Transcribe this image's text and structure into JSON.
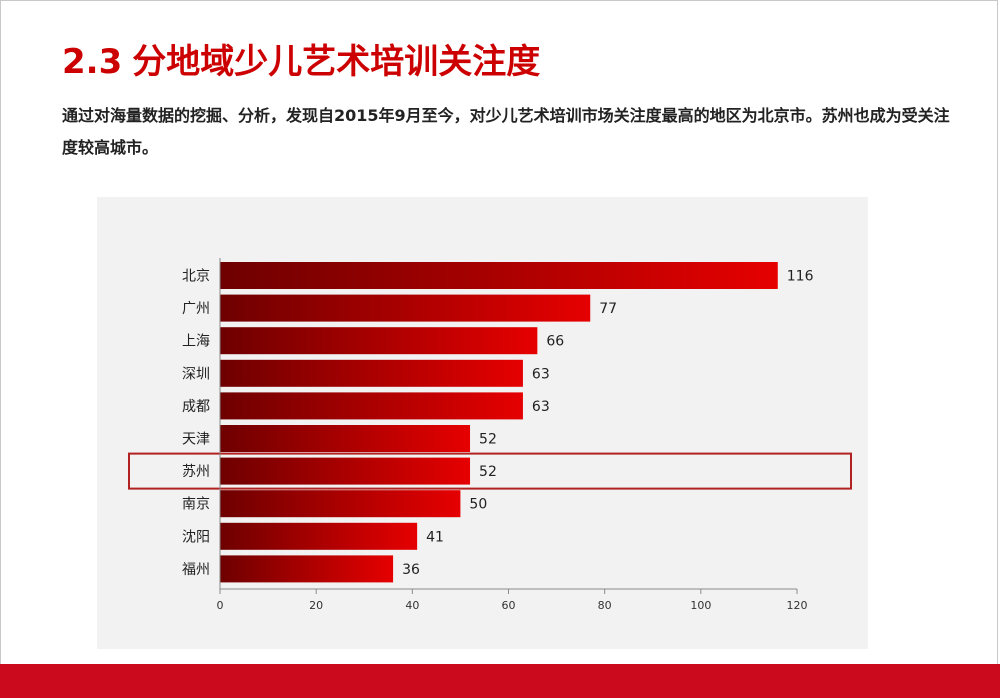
{
  "page": {
    "title_num": "2.3",
    "title_text": "分地域少儿艺术培训关注度",
    "intro": "通过对海量数据的挖掘、分析，发现自2015年9月至今，对少儿艺术培训市场关注度最高的地区为北京市。苏州也成为受关注度较高城市。"
  },
  "colors": {
    "accent": "#cc0000",
    "bar_dark": "#6e0000",
    "bar_light": "#e60000",
    "highlight_border": "#b22222",
    "panel_bg": "#f2f2f2"
  },
  "chart_data": {
    "type": "bar",
    "orientation": "horizontal",
    "categories": [
      "北京",
      "广州",
      "上海",
      "深圳",
      "成都",
      "天津",
      "苏州",
      "南京",
      "沈阳",
      "福州"
    ],
    "values": [
      116,
      77,
      66,
      63,
      63,
      52,
      52,
      50,
      41,
      36
    ],
    "xlim": [
      0,
      120
    ],
    "xticks": [
      "0",
      "20",
      "40",
      "60",
      "80",
      "100",
      "120"
    ],
    "grid": false,
    "data_labels": true,
    "highlight_category": "苏州"
  }
}
